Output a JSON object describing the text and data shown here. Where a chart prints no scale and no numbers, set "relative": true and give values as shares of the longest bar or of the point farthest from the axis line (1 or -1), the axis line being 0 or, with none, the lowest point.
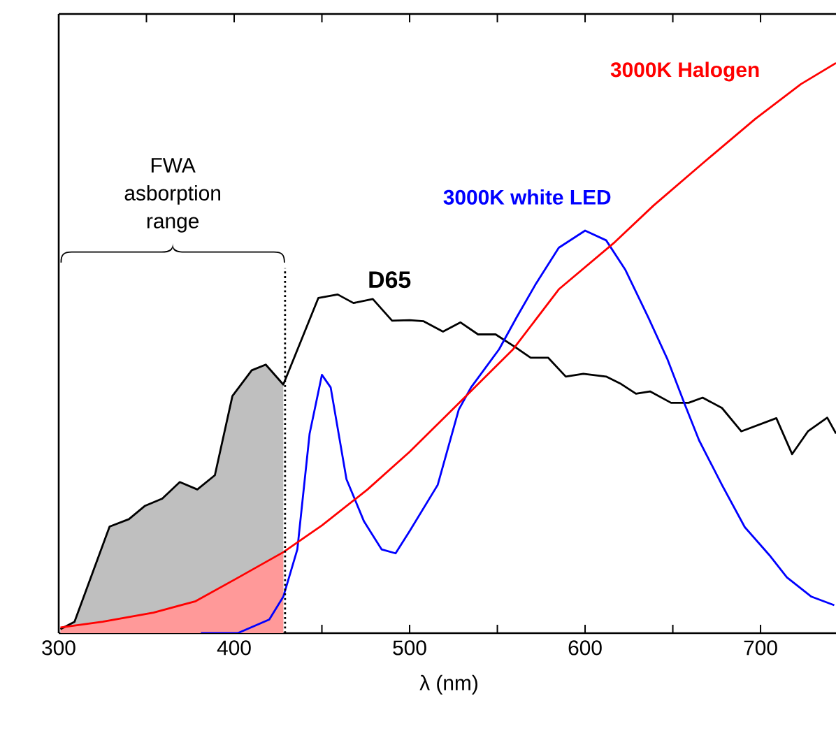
{
  "chart_data": {
    "type": "line",
    "relative": true,
    "xlabel": "λ (nm)",
    "xlim": [
      300,
      745
    ],
    "xticks": [
      300,
      {
        "value": 350,
        "label": null
      },
      400,
      {
        "value": 450,
        "label": null
      },
      500,
      {
        "value": 550,
        "label": null
      },
      600,
      {
        "value": 650,
        "label": null
      },
      700
    ],
    "grid": false,
    "marker": "none",
    "line_style": "solid",
    "series": [
      {
        "type": "area",
        "color": "#bfbfbf",
        "x": [
          301,
          309,
          329,
          340,
          349,
          359,
          369,
          379,
          389,
          399,
          410,
          418,
          428
        ],
        "values": [
          0.007,
          0.02,
          0.187,
          0.2,
          0.223,
          0.236,
          0.265,
          0.252,
          0.277,
          0.416,
          0.461,
          0.471,
          0.436
        ]
      },
      {
        "type": "area",
        "color": "#ff9999",
        "x": [
          301,
          325,
          354,
          378,
          402,
          428
        ],
        "values": [
          0.01,
          0.02,
          0.036,
          0.056,
          0.097,
          0.142
        ]
      },
      {
        "name": "D65",
        "color": "#000000",
        "x": [
          301,
          309,
          329,
          340,
          349,
          359,
          369,
          379,
          389,
          399,
          410,
          418,
          428,
          448,
          459,
          468,
          479,
          490,
          500,
          508,
          519,
          529,
          539,
          549,
          560,
          569,
          579,
          589,
          599,
          612,
          620,
          629,
          637,
          649,
          659,
          667,
          678,
          689,
          709,
          718,
          727,
          738,
          743
        ],
        "values": [
          0.007,
          0.02,
          0.187,
          0.2,
          0.223,
          0.236,
          0.265,
          0.252,
          0.277,
          0.416,
          0.461,
          0.471,
          0.436,
          0.588,
          0.594,
          0.579,
          0.586,
          0.548,
          0.549,
          0.547,
          0.529,
          0.545,
          0.524,
          0.524,
          0.502,
          0.483,
          0.483,
          0.45,
          0.455,
          0.45,
          0.438,
          0.42,
          0.424,
          0.404,
          0.404,
          0.413,
          0.395,
          0.354,
          0.377,
          0.314,
          0.354,
          0.378,
          0.35
        ]
      },
      {
        "name": "3000K white LED",
        "color": "#0000ff",
        "x": [
          381,
          402,
          420,
          428,
          436,
          443,
          450,
          455,
          464,
          474,
          484,
          492,
          500,
          516,
          528,
          535,
          551,
          561,
          572,
          585,
          600,
          612,
          623,
          636,
          647,
          657,
          665,
          678,
          691,
          705,
          715,
          729,
          742
        ],
        "values": [
          0,
          0,
          0.024,
          0.064,
          0.147,
          0.35,
          0.453,
          0.431,
          0.27,
          0.196,
          0.147,
          0.14,
          0.179,
          0.26,
          0.392,
          0.431,
          0.498,
          0.554,
          0.613,
          0.676,
          0.706,
          0.689,
          0.637,
          0.554,
          0.48,
          0.4,
          0.338,
          0.26,
          0.186,
          0.137,
          0.098,
          0.064,
          0.049
        ]
      },
      {
        "name": "3000K Halogen",
        "color": "#ff0000",
        "x": [
          301,
          325,
          354,
          378,
          402,
          428,
          450,
          476,
          500,
          526,
          559,
          585,
          617,
          639,
          667,
          697,
          723,
          743
        ],
        "values": [
          0.01,
          0.02,
          0.036,
          0.056,
          0.097,
          0.142,
          0.189,
          0.252,
          0.318,
          0.397,
          0.498,
          0.603,
          0.686,
          0.75,
          0.824,
          0.902,
          0.963,
          1
        ]
      }
    ],
    "ref_lines": [
      {
        "axis": "x",
        "value": 429,
        "color": "#000000",
        "line_style": "dotted"
      }
    ],
    "annotations": [
      "FWA asborption range"
    ]
  }
}
